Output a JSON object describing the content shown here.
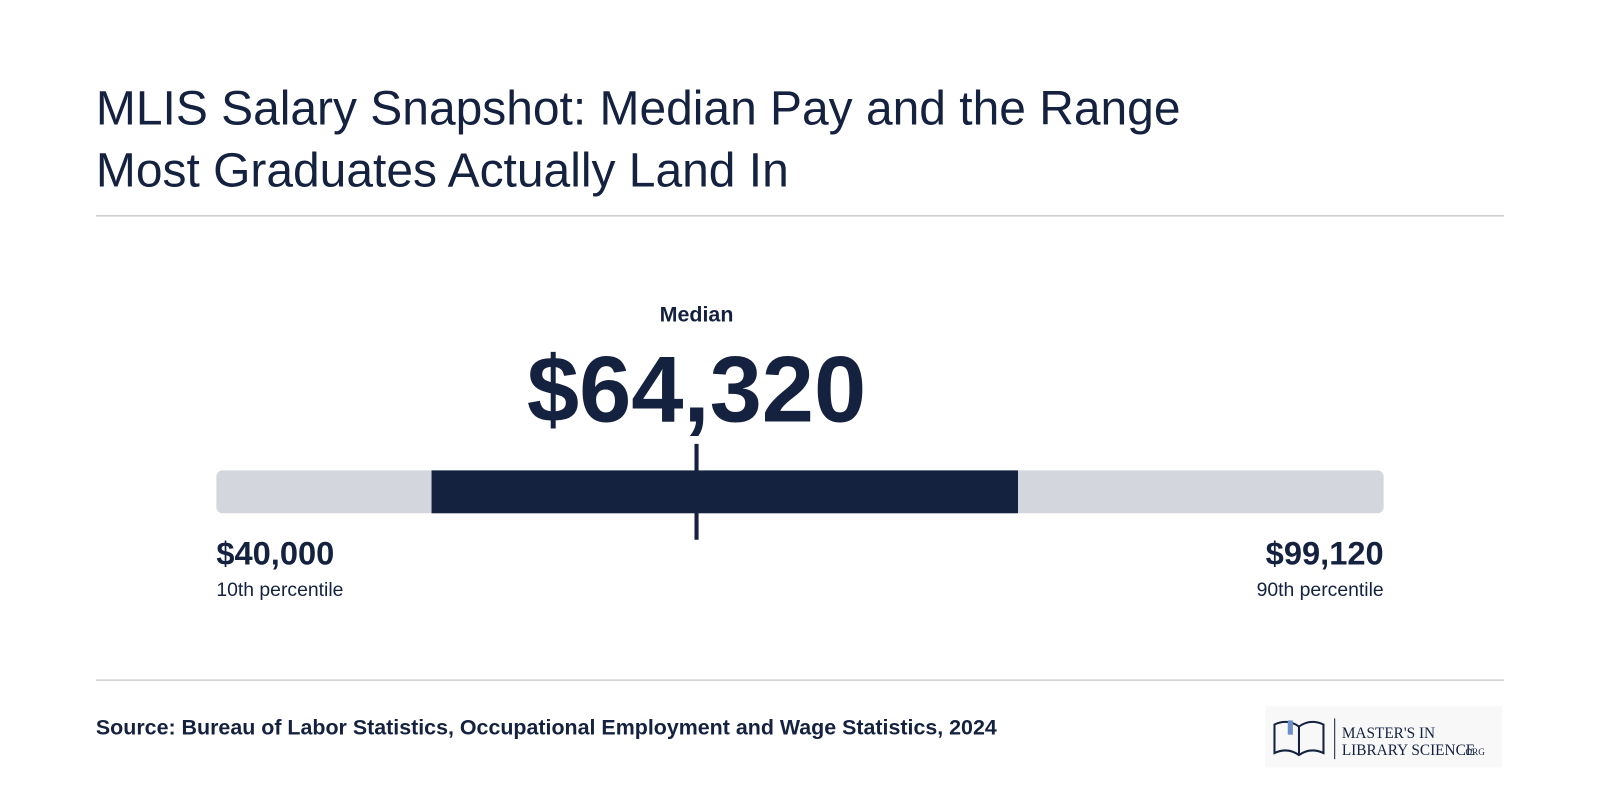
{
  "chart_data": {
    "type": "range",
    "title": [
      "MLIS Salary Snapshot: Median Pay and the Range",
      "Most Graduates Actually Land In"
    ],
    "median_label": "Median",
    "median": {
      "value": 64320,
      "label": "$64,320"
    },
    "low": {
      "value": 40000,
      "label": "$40,000",
      "caption": "10th percentile"
    },
    "high": {
      "value": 99120,
      "label": "$99,120",
      "caption": "90th percentile"
    },
    "band": [
      50900,
      80600
    ],
    "track_color": "#d4d6de",
    "color": "#14213f"
  },
  "footer": {
    "source": "Source: Bureau of Labor Statistics, Occupational Employment and Wage Statistics, 2024",
    "logo": [
      "MASTER'S IN",
      "LIBRARY SCIENCE",
      ".ORG"
    ]
  }
}
